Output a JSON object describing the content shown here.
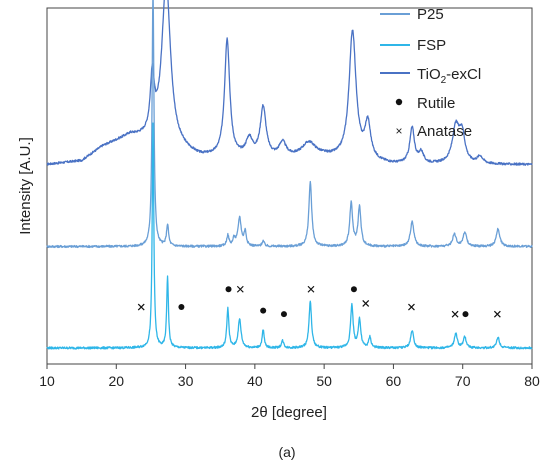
{
  "chart_data": {
    "type": "line",
    "caption": "(a)",
    "xlabel": "2θ [degree]",
    "ylabel": "Intensity [A.U.]",
    "xlim": [
      10,
      80
    ],
    "xticks": [
      10,
      20,
      30,
      40,
      50,
      60,
      70,
      80
    ],
    "yticks": [],
    "grid": false,
    "legend_position": "top-right",
    "legend": {
      "p25": "P25",
      "fsp": "FSP",
      "tio2_prefix": "TiO",
      "tio2_sub": "2",
      "tio2_suffix": "-exCl",
      "rutile": "Rutile",
      "anatase": "Anatase"
    },
    "colors": {
      "P25": "#6a9fd6",
      "FSP": "#2fb6e8",
      "TiO2-exCl": "#4a72c4",
      "markers": "#111111"
    },
    "series": [
      {
        "name": "TiO2-exCl",
        "baseline": 0.56,
        "background": [
          [
            10,
            0.0
          ],
          [
            15,
            0.01
          ],
          [
            18,
            0.05
          ],
          [
            22,
            0.08
          ],
          [
            26,
            0.06
          ],
          [
            32,
            0.02
          ],
          [
            40,
            0.015
          ],
          [
            50,
            0.02
          ],
          [
            60,
            0.0
          ],
          [
            70,
            0.0
          ],
          [
            80,
            0.0
          ]
        ],
        "peaks": [
          [
            25.2,
            0.16,
            0.35
          ],
          [
            27.2,
            0.46,
            0.75
          ],
          [
            36.0,
            0.33,
            0.45
          ],
          [
            39.2,
            0.05,
            0.6
          ],
          [
            41.2,
            0.14,
            0.5
          ],
          [
            44.0,
            0.04,
            0.6
          ],
          [
            47.8,
            0.04,
            1.2
          ],
          [
            54.1,
            0.36,
            0.6
          ],
          [
            56.3,
            0.1,
            0.5
          ],
          [
            62.7,
            0.1,
            0.4
          ],
          [
            64.0,
            0.03,
            0.4
          ],
          [
            69.0,
            0.1,
            0.6
          ],
          [
            69.9,
            0.08,
            0.5
          ],
          [
            72.5,
            0.02,
            0.5
          ]
        ]
      },
      {
        "name": "P25",
        "baseline": 0.33,
        "background": [
          [
            10,
            0.0
          ],
          [
            80,
            0.0
          ]
        ],
        "peaks": [
          [
            25.3,
            0.72,
            0.16
          ],
          [
            27.4,
            0.06,
            0.18
          ],
          [
            36.1,
            0.03,
            0.2
          ],
          [
            37.0,
            0.02,
            0.2
          ],
          [
            37.8,
            0.08,
            0.28
          ],
          [
            38.6,
            0.04,
            0.2
          ],
          [
            41.2,
            0.015,
            0.2
          ],
          [
            48.0,
            0.18,
            0.25
          ],
          [
            53.9,
            0.12,
            0.25
          ],
          [
            55.1,
            0.11,
            0.25
          ],
          [
            62.7,
            0.07,
            0.3
          ],
          [
            68.8,
            0.035,
            0.3
          ],
          [
            70.3,
            0.04,
            0.3
          ],
          [
            75.1,
            0.05,
            0.3
          ]
        ]
      },
      {
        "name": "FSP",
        "baseline": 0.045,
        "background": [
          [
            10,
            0.0
          ],
          [
            80,
            0.0
          ]
        ],
        "peaks": [
          [
            25.3,
            0.63,
            0.14
          ],
          [
            27.4,
            0.2,
            0.15
          ],
          [
            36.1,
            0.11,
            0.18
          ],
          [
            37.8,
            0.08,
            0.25
          ],
          [
            41.2,
            0.05,
            0.18
          ],
          [
            44.0,
            0.02,
            0.2
          ],
          [
            48.0,
            0.13,
            0.22
          ],
          [
            54.0,
            0.12,
            0.22
          ],
          [
            55.1,
            0.08,
            0.22
          ],
          [
            56.6,
            0.03,
            0.2
          ],
          [
            62.7,
            0.05,
            0.25
          ],
          [
            69.0,
            0.04,
            0.25
          ],
          [
            70.3,
            0.03,
            0.25
          ],
          [
            75.1,
            0.03,
            0.25
          ]
        ]
      }
    ],
    "markers": {
      "rutile": [
        [
          29.4,
          0.16
        ],
        [
          36.2,
          0.21
        ],
        [
          41.2,
          0.15
        ],
        [
          44.2,
          0.14
        ],
        [
          54.3,
          0.21
        ],
        [
          70.4,
          0.14
        ]
      ],
      "anatase": [
        [
          23.6,
          0.16
        ],
        [
          37.9,
          0.21
        ],
        [
          48.1,
          0.21
        ],
        [
          56.0,
          0.17
        ],
        [
          62.6,
          0.16
        ],
        [
          68.9,
          0.14
        ],
        [
          75.0,
          0.14
        ]
      ]
    }
  }
}
